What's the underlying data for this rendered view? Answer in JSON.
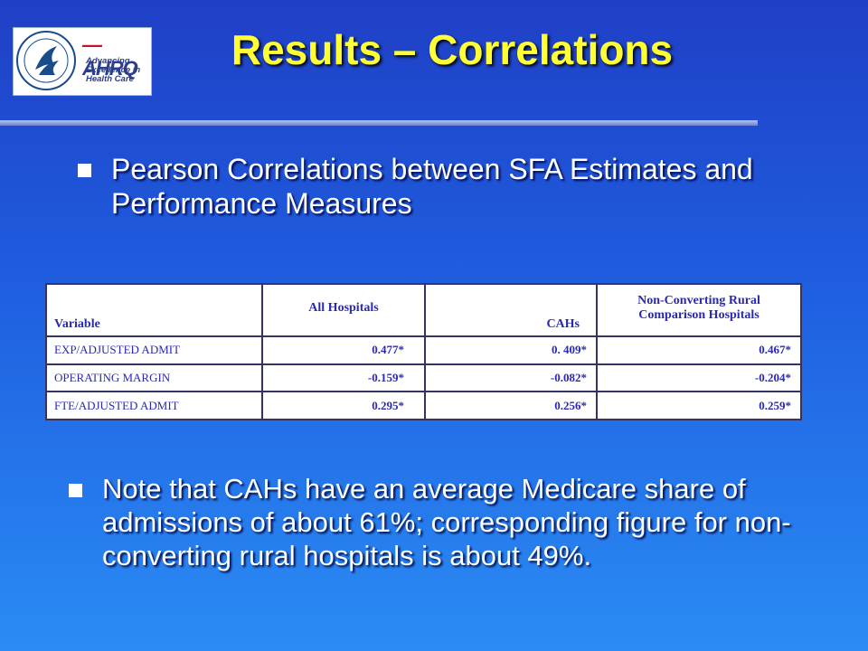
{
  "logo": {
    "seal_text": "DEPARTMENT OF HEALTH & HUMAN SERVICES USA",
    "brand": "AHRQ",
    "tagline": "Advancing Excellence in Health Care"
  },
  "title": "Results – Correlations",
  "bullets": {
    "first": "Pearson Correlations between SFA Estimates and Performance Measures",
    "second": "Note that CAHs have an average Medicare share of admissions of about 61%; corresponding figure for non-converting rural hospitals is about 49%."
  },
  "table": {
    "headers": [
      "Variable",
      "All Hospitals",
      "CAHs",
      "Non-Converting Rural Comparison Hospitals"
    ],
    "rows": [
      [
        "EXP/ADJUSTED ADMIT",
        "0.477*",
        "0. 409*",
        "0.467*"
      ],
      [
        "OPERATING MARGIN",
        "-0.159*",
        "-0.082*",
        "-0.204*"
      ],
      [
        "FTE/ADJUSTED ADMIT",
        "0.295*",
        "0.256*",
        "0.259*"
      ]
    ]
  },
  "colors": {
    "title": "#ffff33",
    "background_top": "#1f3fc6",
    "background_bottom": "#2a8cf4",
    "table_text": "#2a2ab0"
  }
}
